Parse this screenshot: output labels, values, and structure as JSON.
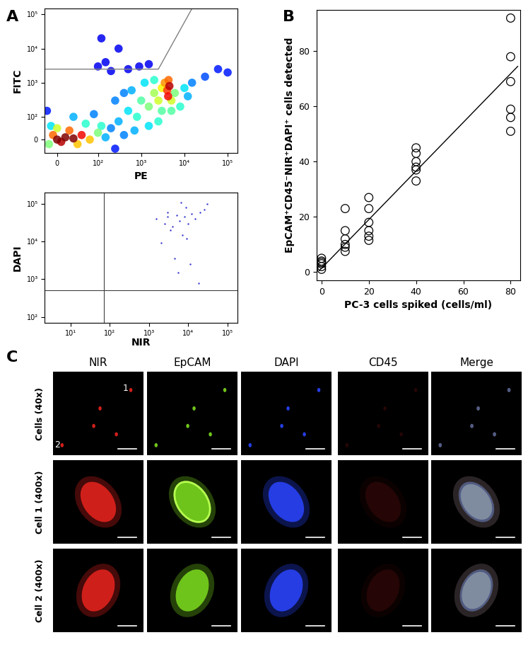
{
  "panel_labels": [
    "A",
    "B",
    "C"
  ],
  "chart_data": [
    {
      "type": "density_scatter",
      "x_label": "PE",
      "y_label": "FITC",
      "log": true,
      "xlim": [
        -30,
        170000
      ],
      "ylim": [
        -60,
        150000
      ],
      "xticks": [
        0,
        {
          "value": 100,
          "label": "10²"
        },
        {
          "value": 1000,
          "label": "10³"
        },
        {
          "value": 10000,
          "label": "10⁴"
        },
        {
          "value": 100000,
          "label": "10⁵"
        }
      ],
      "yticks": [
        0,
        {
          "value": 100,
          "label": "10²"
        },
        {
          "value": 1000,
          "label": "10³"
        },
        {
          "value": 10000,
          "label": "10⁴"
        },
        {
          "value": 100000,
          "label": "10⁵"
        }
      ],
      "color_range": [
        0,
        1
      ],
      "points": [
        [
          100,
          3000,
          0.1
        ],
        [
          150,
          4000,
          0.1
        ],
        [
          300,
          10000,
          0.1
        ],
        [
          500,
          2500,
          0.1
        ],
        [
          200,
          2200,
          0.1
        ],
        [
          900,
          3000,
          0.1
        ],
        [
          120,
          20000,
          0.1
        ],
        [
          1500,
          3500,
          0.1
        ],
        [
          -25,
          150,
          0.15
        ],
        [
          250,
          -40,
          0.15
        ],
        [
          60000,
          2500,
          0.15
        ],
        [
          100000,
          2000,
          0.15
        ],
        [
          30000,
          1500,
          0.2
        ],
        [
          15000,
          1000,
          0.25
        ],
        [
          250,
          300,
          0.25
        ],
        [
          400,
          500,
          0.25
        ],
        [
          400,
          20,
          0.25
        ],
        [
          300,
          80,
          0.3
        ],
        [
          700,
          40,
          0.3
        ],
        [
          600,
          600,
          0.3
        ],
        [
          12000,
          400,
          0.3
        ],
        [
          10000,
          700,
          0.35
        ],
        [
          1200,
          1000,
          0.35
        ],
        [
          1500,
          60,
          0.35
        ],
        [
          500,
          150,
          0.35
        ],
        [
          800,
          100,
          0.4
        ],
        [
          8000,
          200,
          0.4
        ],
        [
          2000,
          1200,
          0.4
        ],
        [
          2500,
          80,
          0.4
        ],
        [
          1000,
          300,
          0.45
        ],
        [
          3000,
          150,
          0.45
        ],
        [
          5000,
          150,
          0.45
        ],
        [
          1500,
          200,
          0.5
        ],
        [
          6000,
          500,
          0.5
        ],
        [
          2000,
          500,
          0.55
        ],
        [
          2500,
          300,
          0.6
        ],
        [
          5000,
          300,
          0.6
        ],
        [
          3000,
          700,
          0.65
        ],
        [
          3500,
          1000,
          0.75
        ],
        [
          4300,
          1200,
          0.8
        ],
        [
          4000,
          600,
          0.85
        ],
        [
          4200,
          400,
          0.9
        ],
        [
          4500,
          800,
          0.95
        ],
        [
          200,
          50,
          0.25
        ],
        [
          90,
          120,
          0.25
        ],
        [
          150,
          10,
          0.3
        ],
        [
          40,
          100,
          0.3
        ],
        [
          -15,
          60,
          0.35
        ],
        [
          120,
          60,
          0.4
        ],
        [
          70,
          70,
          0.4
        ],
        [
          100,
          30,
          0.5
        ],
        [
          -20,
          -20,
          0.5
        ],
        [
          0,
          50,
          0.6
        ],
        [
          80,
          0,
          0.7
        ],
        [
          50,
          -20,
          0.7
        ],
        [
          -10,
          20,
          0.8
        ],
        [
          30,
          40,
          0.8
        ],
        [
          60,
          20,
          0.9
        ],
        [
          10,
          -10,
          0.95
        ],
        [
          0,
          0,
          1.0
        ],
        [
          20,
          10,
          1.0
        ],
        [
          40,
          5,
          1.0
        ]
      ],
      "gate": {
        "x": [
          -30,
          2500,
          15000
        ],
        "y": [
          2500,
          2500,
          150000
        ]
      }
    },
    {
      "type": "scatter",
      "x_label": "NIR",
      "y_label": "DAPI",
      "log": true,
      "xlim": [
        2.2,
        180000
      ],
      "ylim": [
        70,
        200000
      ],
      "xticks": [
        {
          "value": 10,
          "label": "10¹"
        },
        {
          "value": 100,
          "label": "10²"
        },
        {
          "value": 1000,
          "label": "10³"
        },
        {
          "value": 10000,
          "label": "10⁴"
        },
        {
          "value": 100000,
          "label": "10⁵"
        }
      ],
      "yticks": [
        {
          "value": 100,
          "label": "10²"
        },
        {
          "value": 1000,
          "label": "10³"
        },
        {
          "value": 10000,
          "label": "10⁴"
        },
        {
          "value": 100000,
          "label": "10⁵"
        }
      ],
      "color": "#3a3ad0",
      "x": [
        1500,
        2500,
        3000,
        4000,
        5000,
        6000,
        8000,
        10000,
        12000,
        15000,
        20000,
        25000,
        30000,
        3500,
        7000,
        9000,
        2000,
        4500,
        11000,
        18000,
        5500,
        3000,
        8500,
        6500
      ],
      "y": [
        40000,
        30000,
        60000,
        25000,
        50000,
        35000,
        45000,
        30000,
        55000,
        40000,
        60000,
        70000,
        100000,
        20000,
        15000,
        12000,
        9000,
        3500,
        2500,
        800,
        1500,
        45000,
        80000,
        110000
      ],
      "quadrant": {
        "x": 70,
        "y": 500
      }
    },
    {
      "type": "scatter",
      "x_label": "PC-3 cells spiked (cells/ml)",
      "y_label": "EpCAM⁺CD45⁻NIR⁺DAPI⁺ cells detected",
      "xlim": [
        -2,
        84
      ],
      "ylim": [
        -3,
        95
      ],
      "xticks": [
        0,
        20,
        40,
        60,
        80
      ],
      "yticks": [
        0,
        20,
        40,
        60,
        80
      ],
      "marker": "o",
      "color": "#000000",
      "x": [
        0,
        0,
        0,
        0,
        0,
        0,
        10,
        10,
        10,
        10,
        10,
        10,
        20,
        20,
        20,
        20,
        20,
        20,
        40,
        40,
        40,
        40,
        40,
        40,
        80,
        80,
        80,
        80,
        80,
        80
      ],
      "y": [
        1,
        2,
        3,
        3.5,
        4,
        5,
        7.5,
        9,
        10,
        12,
        15,
        23,
        11.5,
        13,
        15,
        18,
        23,
        27,
        33,
        37,
        38,
        40,
        43,
        45,
        51,
        56,
        59,
        69,
        78,
        92
      ],
      "fit": {
        "x": [
          -1,
          83
        ],
        "y": [
          0.5,
          74.5
        ]
      }
    }
  ],
  "image_grid": {
    "columns": [
      {
        "label": "NIR",
        "color": "#e8231e"
      },
      {
        "label": "EpCAM",
        "color": "#7ddc1f"
      },
      {
        "label": "DAPI",
        "color": "#2a45ff"
      },
      {
        "label": "CD45",
        "color": "#2a0606"
      },
      {
        "label": "Merge"
      }
    ],
    "rows": [
      "Cells (40x)",
      "Cell 1 (400x)",
      "Cell 2 (400x)"
    ],
    "cell_markers": [
      "1",
      "2"
    ]
  }
}
